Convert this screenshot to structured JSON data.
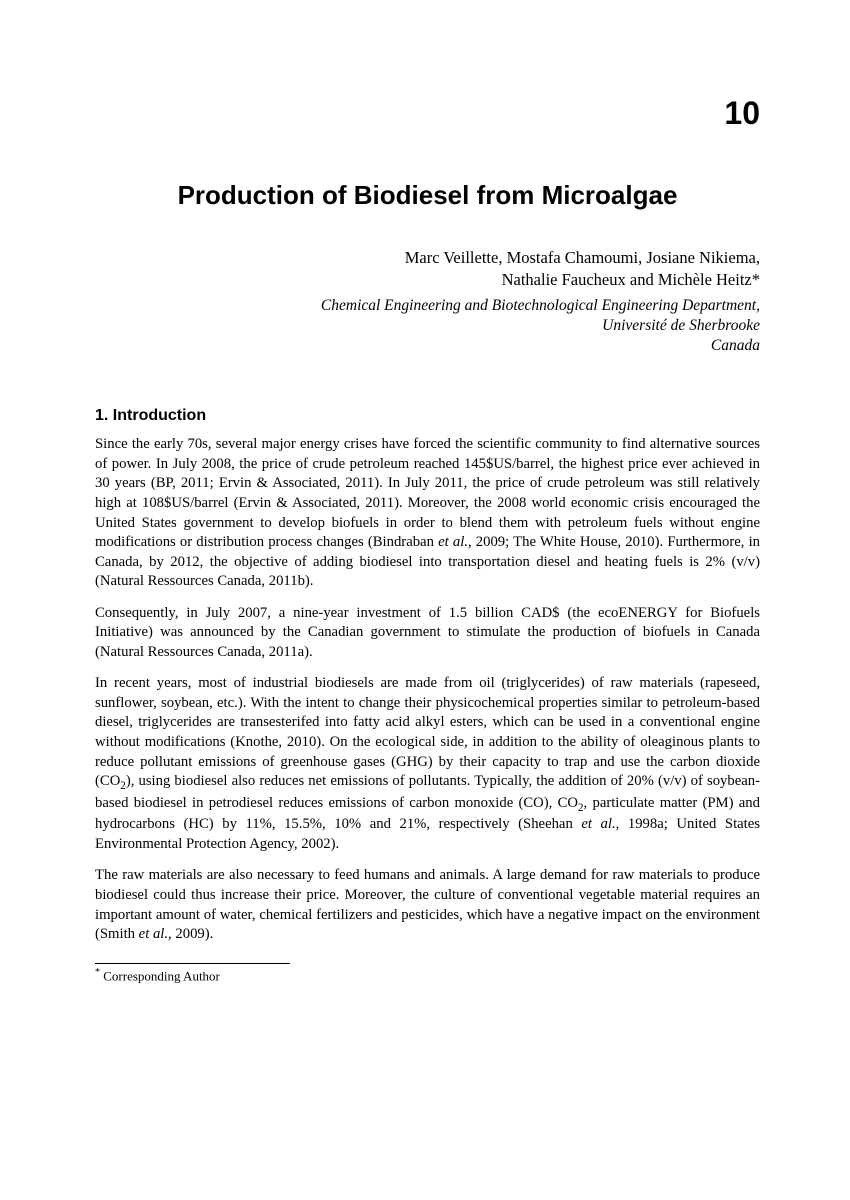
{
  "chapter_number": "10",
  "title": "Production of Biodiesel from Microalgae",
  "authors_line1": "Marc Veillette, Mostafa Chamoumi, Josiane Nikiema,",
  "authors_line2": "Nathalie Faucheux and Michèle Heitz*",
  "affiliation_line1": "Chemical Engineering and Biotechnological Engineering Department,",
  "affiliation_line2": "Université de Sherbrooke",
  "country": "Canada",
  "section_heading": "1. Introduction",
  "para1": "Since the early 70s, several major energy crises have forced the scientific community to find alternative sources of power. In July 2008, the price of crude petroleum reached 145$US/barrel, the highest price ever achieved in 30 years (BP, 2011; Ervin & Associated, 2011). In July 2011, the price of crude petroleum was still relatively high at 108$US/barrel (Ervin & Associated, 2011). Moreover, the 2008 world economic crisis encouraged the United States government to develop biofuels in order to blend them with petroleum fuels without engine modifications or distribution process changes (Bindraban et al., 2009; The White House, 2010). Furthermore, in Canada, by 2012, the objective of adding biodiesel into transportation diesel and heating fuels is 2% (v/v) (Natural Ressources Canada, 2011b).",
  "para2": "Consequently, in July 2007, a nine-year investment of 1.5 billion CAD$ (the ecoENERGY for Biofuels Initiative) was announced by the Canadian government to stimulate the production of biofuels in Canada (Natural Ressources Canada, 2011a).",
  "para3": "In recent years, most of industrial biodiesels are made from oil (triglycerides) of raw materials (rapeseed, sunflower, soybean, etc.). With the intent to change their physicochemical properties similar to petroleum-based diesel, triglycerides are transesterifed into fatty acid alkyl esters, which can be used in a conventional engine without modifications (Knothe, 2010). On the ecological side, in addition to the ability of oleaginous plants to reduce pollutant emissions of greenhouse gases (GHG) by their capacity to trap and use the carbon dioxide (CO2), using biodiesel also reduces net emissions of pollutants. Typically, the addition of 20% (v/v) of soybean-based biodiesel in petrodiesel reduces emissions of carbon monoxide (CO), CO2, particulate matter (PM) and hydrocarbons (HC) by 11%, 15.5%, 10% and 21%, respectively (Sheehan et al., 1998a; United States Environmental Protection Agency, 2002).",
  "para4": "The raw materials are also necessary to feed humans and animals. A large demand for raw materials to produce biodiesel could thus increase their price. Moreover, the culture of conventional vegetable material requires an important amount of water, chemical fertilizers and pesticides, which have a negative impact on the environment (Smith et al., 2009).",
  "footnote": "Corresponding Author"
}
